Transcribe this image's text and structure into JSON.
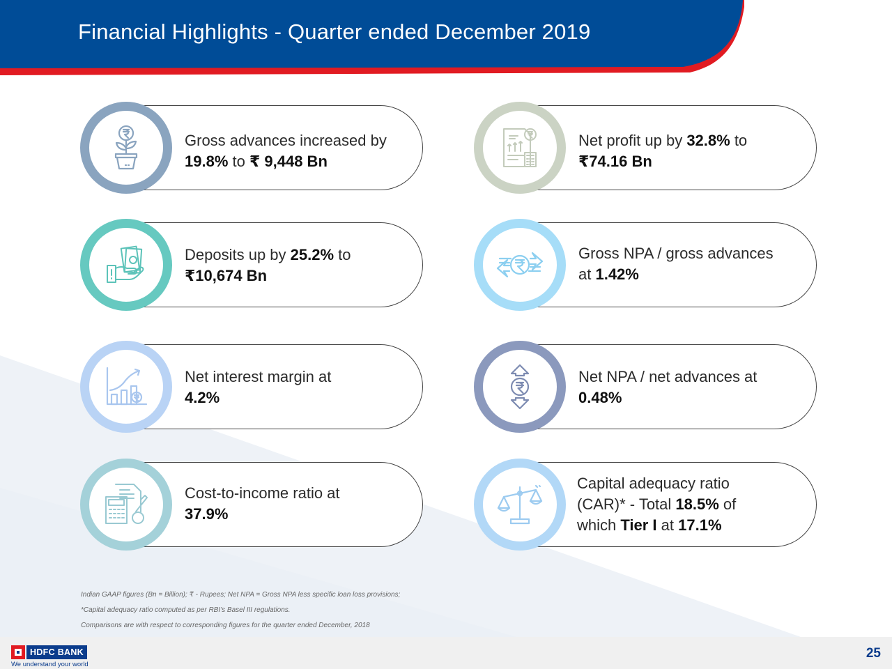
{
  "header": {
    "title": "Financial Highlights - Quarter ended December  2019",
    "bg_color": "#004c97",
    "accent_color": "#e11b22"
  },
  "cards": [
    {
      "icon": "plant-rupee-icon",
      "ring_color": "#8aa4bf",
      "line1": [
        {
          "t": "Gross advances increased by",
          "b": false
        }
      ],
      "line2": [
        {
          "t": "19.8%",
          "b": true
        },
        {
          "t": " to ",
          "b": false
        },
        {
          "t": "₹ 9,448 Bn",
          "b": true
        }
      ]
    },
    {
      "icon": "report-calculator-icon",
      "ring_color": "#cbd3c4",
      "line1": [
        {
          "t": "Net profit up by ",
          "b": false
        },
        {
          "t": "32.8%",
          "b": true
        },
        {
          "t": " to",
          "b": false
        }
      ],
      "line2": [
        {
          "t": "₹74.16 Bn",
          "b": true
        }
      ]
    },
    {
      "icon": "cash-hand-icon",
      "ring_color": "#66c9c0",
      "line1": [
        {
          "t": "Deposits up by ",
          "b": false
        },
        {
          "t": "25.2%",
          "b": true
        },
        {
          "t": " to",
          "b": false
        }
      ],
      "line2": [
        {
          "t": "₹10,674 Bn",
          "b": true
        }
      ]
    },
    {
      "icon": "rupee-exchange-arrows-icon",
      "ring_color": "#a6ddf8",
      "line1": [
        {
          "t": "Gross NPA / gross advances",
          "b": false
        }
      ],
      "line2": [
        {
          "t": "at ",
          "b": false
        },
        {
          "t": "1.42%",
          "b": true
        }
      ]
    },
    {
      "icon": "growth-chart-icon",
      "ring_color": "#b9d3f5",
      "line1": [
        {
          "t": "Net interest margin at",
          "b": false
        }
      ],
      "line2": [
        {
          "t": "4.2%",
          "b": true
        }
      ]
    },
    {
      "icon": "rupee-up-down-icon",
      "ring_color": "#8b99bd",
      "line1": [
        {
          "t": "Net NPA / net advances at",
          "b": false
        }
      ],
      "line2": [
        {
          "t": "0.48%",
          "b": true
        }
      ]
    },
    {
      "icon": "calculator-document-icon",
      "ring_color": "#a4d1d9",
      "line1": [
        {
          "t": "Cost-to-income ratio at",
          "b": false
        }
      ],
      "line2": [
        {
          "t": "37.9%",
          "b": true
        }
      ]
    },
    {
      "icon": "balance-scale-icon",
      "ring_color": "#b2d8f7",
      "line1": [
        {
          "t": "Capital adequacy ratio",
          "b": false
        }
      ],
      "line2": [
        {
          "t": "(CAR)* - Total ",
          "b": false
        },
        {
          "t": "18.5%",
          "b": true
        },
        {
          "t": " of",
          "b": false
        }
      ],
      "line3": [
        {
          "t": "which ",
          "b": false
        },
        {
          "t": "Tier I",
          "b": true
        },
        {
          "t": " at ",
          "b": false
        },
        {
          "t": "17.1%",
          "b": true
        }
      ]
    }
  ],
  "notes": [
    "Indian GAAP figures (Bn = Billion); ₹  - Rupees; Net NPA = Gross NPA less specific loan loss provisions;",
    "*Capital adequacy ratio computed as per RBI’s Basel III  regulations.",
    "Comparisons are with respect to corresponding figures for the quarter ended December, 2018"
  ],
  "footer": {
    "logo_text": "HDFC BANK",
    "tagline": "We understand your world",
    "page_number": "25",
    "brand_color": "#0b3c8c"
  }
}
